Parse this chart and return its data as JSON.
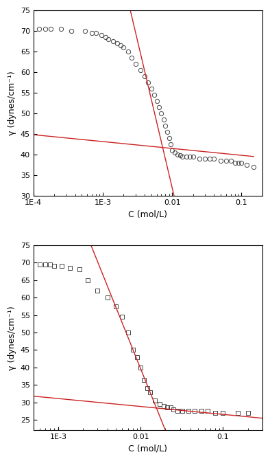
{
  "plot1": {
    "ylabel": "γ (dynes/cm⁻¹)",
    "xlabel": "C (mol/L)",
    "ylim": [
      30,
      75
    ],
    "xlim": [
      0.0001,
      0.2
    ],
    "yticks": [
      30,
      35,
      40,
      45,
      50,
      55,
      60,
      65,
      70,
      75
    ],
    "xticks": [
      0.0001,
      0.001,
      0.01,
      0.1
    ],
    "xtick_labels": [
      "1E-4",
      "1E-3",
      "0.01",
      "0.1"
    ],
    "circles_x": [
      0.00012,
      0.00015,
      0.00018,
      0.00025,
      0.00035,
      0.00055,
      0.0007,
      0.0008,
      0.00095,
      0.0011,
      0.0012,
      0.0014,
      0.0016,
      0.0018,
      0.002,
      0.0023,
      0.0026,
      0.003,
      0.0035,
      0.004,
      0.0045,
      0.005,
      0.0055,
      0.006,
      0.0065,
      0.007,
      0.0075,
      0.008,
      0.0085,
      0.009,
      0.0095,
      0.01,
      0.011,
      0.012,
      0.013,
      0.014,
      0.016,
      0.018,
      0.02,
      0.025,
      0.03,
      0.035,
      0.04,
      0.05,
      0.06,
      0.07,
      0.08,
      0.09,
      0.1,
      0.12,
      0.15
    ],
    "circles_y": [
      70.5,
      70.5,
      70.5,
      70.5,
      70.0,
      70.0,
      69.5,
      69.5,
      69.0,
      68.5,
      68.0,
      67.5,
      67.0,
      66.5,
      66.0,
      65.0,
      63.5,
      62.0,
      60.5,
      59.0,
      57.5,
      56.0,
      54.5,
      53.0,
      51.5,
      50.0,
      48.5,
      47.0,
      45.5,
      44.0,
      42.5,
      41.0,
      40.5,
      40.0,
      39.8,
      39.5,
      39.5,
      39.5,
      39.5,
      39.0,
      39.0,
      39.0,
      39.0,
      38.5,
      38.5,
      38.5,
      38.0,
      38.0,
      38.0,
      37.5,
      37.0
    ],
    "line1_x": [
      0.0001,
      0.15
    ],
    "line1_y": [
      44.8,
      39.5
    ],
    "line2_x": [
      0.0025,
      0.011
    ],
    "line2_y": [
      75.0,
      29.0
    ],
    "marker_color": "#444444",
    "line_color": "#cc2222"
  },
  "plot2": {
    "ylabel": "γ (dynes/cm⁻¹)",
    "xlabel": "C (mol/L)",
    "ylim": [
      22,
      75
    ],
    "xlim": [
      0.0005,
      0.3
    ],
    "yticks": [
      25,
      30,
      35,
      40,
      45,
      50,
      55,
      60,
      65,
      70,
      75
    ],
    "xticks": [
      0.001,
      0.01,
      0.1
    ],
    "xtick_labels": [
      "1E-3",
      "0.01",
      "0.1"
    ],
    "squares_x": [
      0.0006,
      0.0007,
      0.0008,
      0.0009,
      0.0011,
      0.0014,
      0.0018,
      0.0023,
      0.003,
      0.004,
      0.005,
      0.006,
      0.007,
      0.008,
      0.009,
      0.01,
      0.011,
      0.012,
      0.013,
      0.015,
      0.017,
      0.019,
      0.021,
      0.023,
      0.025,
      0.028,
      0.032,
      0.038,
      0.045,
      0.055,
      0.065,
      0.08,
      0.1,
      0.15,
      0.2
    ],
    "squares_y": [
      69.5,
      69.5,
      69.5,
      69.0,
      69.0,
      68.5,
      68.0,
      65.0,
      62.0,
      60.0,
      57.5,
      54.5,
      50.0,
      45.0,
      43.0,
      40.0,
      36.5,
      34.0,
      33.0,
      30.5,
      29.5,
      29.0,
      28.5,
      28.5,
      28.0,
      27.5,
      27.5,
      27.5,
      27.5,
      27.5,
      27.5,
      27.0,
      27.0,
      27.0,
      27.0
    ],
    "line1_x": [
      0.0005,
      0.3
    ],
    "line1_y": [
      31.8,
      25.5
    ],
    "line2_x": [
      0.0025,
      0.02
    ],
    "line2_y": [
      75.0,
      22.0
    ],
    "marker_color": "#444444",
    "line_color": "#cc2222"
  }
}
